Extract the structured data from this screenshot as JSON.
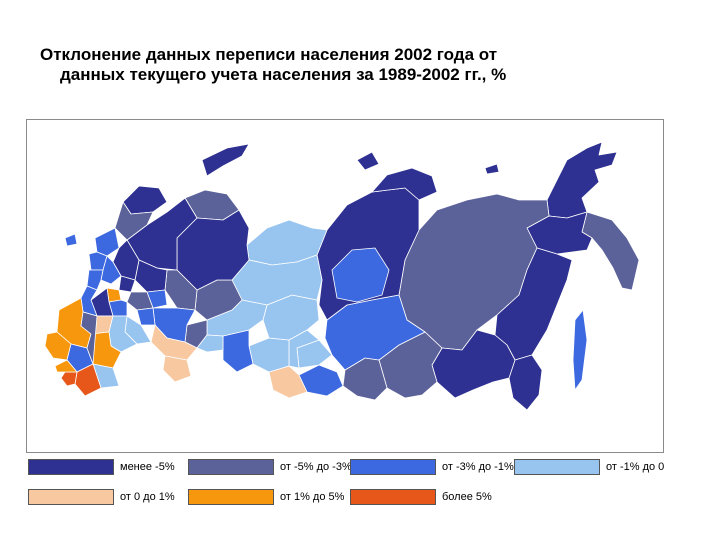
{
  "title": {
    "line1": "Отклонение данных переписи населения 2002 года от",
    "line2": "данных текущего учета населения за 1989-2002 гг., %"
  },
  "colors": {
    "c1": "#2e3191",
    "c2": "#5b6199",
    "c3": "#3c68e0",
    "c4": "#98c4f0",
    "c5": "#f8c8a0",
    "c6": "#f7970e",
    "c7": "#e8571a",
    "border": "#ffffff"
  },
  "legend": [
    {
      "label": "менее -5%",
      "color": "#2e3191"
    },
    {
      "label": "от -5% до -3%",
      "color": "#5b6199"
    },
    {
      "label": "от -3% до -1%",
      "color": "#3c68e0"
    },
    {
      "label": "от -1% до 0",
      "color": "#98c4f0"
    },
    {
      "label": "от 0 до 1%",
      "color": "#f8c8a0"
    },
    {
      "label": "от 1% до 5%",
      "color": "#f7970e"
    },
    {
      "label": "более 5%",
      "color": "#e8571a"
    }
  ]
}
